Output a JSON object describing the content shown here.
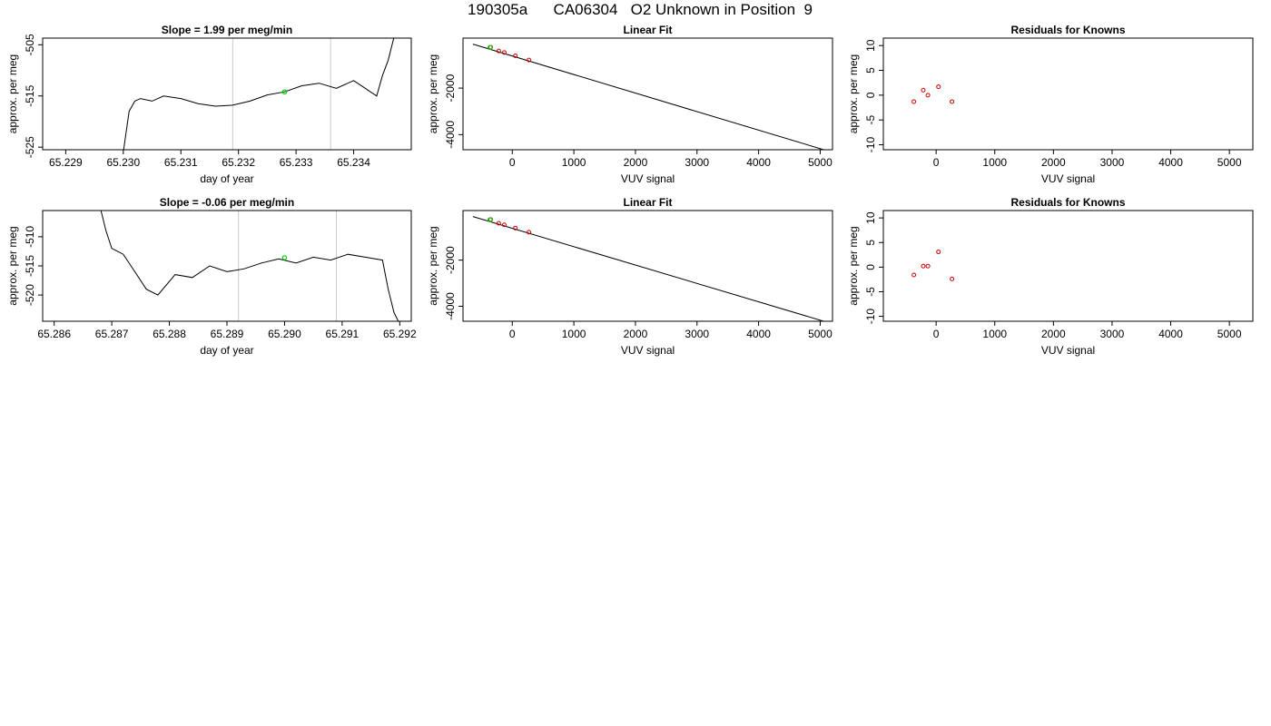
{
  "figure": {
    "title": "190305a      CA06304   O2 Unknown in Position  9"
  },
  "chart_data": [
    {
      "panel": "row1-time",
      "type": "line",
      "title": "Slope =  1.99  per meg/min",
      "xlabel": "day of year",
      "ylabel": "approx. per meg",
      "xlim": [
        65.2286,
        65.235
      ],
      "ylim": [
        -525.5,
        -503.7
      ],
      "xticks": [
        65.229,
        65.23,
        65.231,
        65.232,
        65.233,
        65.234
      ],
      "xtick_labels": [
        "65.229",
        "65.230",
        "65.231",
        "65.232",
        "65.233",
        "65.234"
      ],
      "yticks": [
        -525,
        -515,
        -505
      ],
      "ytick_labels": [
        "-525",
        "-515",
        "-505"
      ],
      "vlines": [
        65.2319,
        65.2336
      ],
      "marker": {
        "x": 65.2328,
        "y": -514.2,
        "color": "#00cc00"
      },
      "series": [
        {
          "x": [
            65.23,
            65.2301,
            65.2302,
            65.2303,
            65.2305,
            65.2307,
            65.231,
            65.2313,
            65.2316,
            65.2319,
            65.2322,
            65.2325,
            65.2328,
            65.2331,
            65.2334,
            65.2337,
            65.234,
            65.2342,
            65.2344,
            65.2345,
            65.2346,
            65.2347
          ],
          "y": [
            -526,
            -518,
            -516,
            -515.5,
            -516,
            -515,
            -515.5,
            -516.5,
            -517,
            -516.8,
            -516,
            -514.8,
            -514.2,
            -513,
            -512.5,
            -513.5,
            -512,
            -513.5,
            -515,
            -511,
            -508,
            -503.5
          ]
        }
      ]
    },
    {
      "panel": "row1-fit",
      "type": "scatter",
      "title": "Linear Fit",
      "xlabel": "VUV signal",
      "ylabel": "approx. per meg",
      "xlim": [
        -800,
        5200
      ],
      "ylim": [
        -4650,
        150
      ],
      "xticks": [
        0,
        1000,
        2000,
        3000,
        4000,
        5000
      ],
      "xtick_labels": [
        "0",
        "1000",
        "2000",
        "3000",
        "4000",
        "5000"
      ],
      "yticks": [
        -4000,
        -2000
      ],
      "ytick_labels": [
        "-4000",
        "-2000"
      ],
      "fit_line": {
        "x": [
          -640,
          5120
        ],
        "y": [
          -110,
          -4700
        ]
      },
      "series": [
        {
          "name": "",
          "color": "#cc0000",
          "x": [
            -350,
            -220,
            -130,
            50,
            270
          ],
          "y": [
            -240,
            -400,
            -470,
            -610,
            -790
          ]
        }
      ],
      "marker": {
        "x": -360,
        "y": -250,
        "color": "#00cc00"
      }
    },
    {
      "panel": "row1-residuals",
      "type": "scatter",
      "title": "Residuals for Knowns",
      "xlabel": "VUV signal",
      "ylabel": "approx. per meg",
      "xlim": [
        -900,
        5400
      ],
      "ylim": [
        -11,
        11.5
      ],
      "xticks": [
        0,
        1000,
        2000,
        3000,
        4000,
        5000
      ],
      "xtick_labels": [
        "0",
        "1000",
        "2000",
        "3000",
        "4000",
        "5000"
      ],
      "yticks": [
        -10,
        -5,
        0,
        5,
        10
      ],
      "ytick_labels": [
        "-10",
        "-5",
        "0",
        "5",
        "10"
      ],
      "series": [
        {
          "name": "",
          "color": "#cc0000",
          "x": [
            -380,
            -220,
            -140,
            40,
            270
          ],
          "y": [
            -1.3,
            1.0,
            0.0,
            1.7,
            -1.3
          ]
        }
      ]
    },
    {
      "panel": "row2-time",
      "type": "line",
      "title": "Slope =  -0.06  per meg/min",
      "xlabel": "day of year",
      "ylabel": "approx. per meg",
      "xlim": [
        65.2858,
        65.2922
      ],
      "ylim": [
        -524.5,
        -505.5
      ],
      "xticks": [
        65.286,
        65.287,
        65.288,
        65.289,
        65.29,
        65.291,
        65.292
      ],
      "xtick_labels": [
        "65.286",
        "65.287",
        "65.288",
        "65.289",
        "65.290",
        "65.291",
        "65.292"
      ],
      "yticks": [
        -520,
        -515,
        -510
      ],
      "ytick_labels": [
        "-520",
        "-515",
        "-510"
      ],
      "vlines": [
        65.2892,
        65.2909
      ],
      "marker": {
        "x": 65.29,
        "y": -513.6,
        "color": "#00cc00"
      },
      "series": [
        {
          "x": [
            65.2868,
            65.2869,
            65.287,
            65.2872,
            65.2874,
            65.2876,
            65.2878,
            65.2881,
            65.2884,
            65.2887,
            65.289,
            65.2893,
            65.2896,
            65.2899,
            65.2902,
            65.2905,
            65.2908,
            65.2911,
            65.2914,
            65.2917,
            65.2918,
            65.2919,
            65.292
          ],
          "y": [
            -505,
            -509,
            -512,
            -513,
            -516,
            -519,
            -520,
            -516.5,
            -517,
            -515,
            -516,
            -515.5,
            -514.5,
            -513.8,
            -514.5,
            -513.5,
            -514,
            -513,
            -513.5,
            -514,
            -519,
            -523,
            -525
          ]
        }
      ]
    },
    {
      "panel": "row2-fit",
      "type": "scatter",
      "title": "Linear Fit",
      "xlabel": "VUV signal",
      "ylabel": "approx. per meg",
      "xlim": [
        -800,
        5200
      ],
      "ylim": [
        -4650,
        150
      ],
      "xticks": [
        0,
        1000,
        2000,
        3000,
        4000,
        5000
      ],
      "xtick_labels": [
        "0",
        "1000",
        "2000",
        "3000",
        "4000",
        "5000"
      ],
      "yticks": [
        -4000,
        -2000
      ],
      "ytick_labels": [
        "-4000",
        "-2000"
      ],
      "fit_line": {
        "x": [
          -640,
          5120
        ],
        "y": [
          -110,
          -4700
        ]
      },
      "series": [
        {
          "name": "",
          "color": "#cc0000",
          "x": [
            -350,
            -220,
            -130,
            50,
            270
          ],
          "y": [
            -240,
            -400,
            -470,
            -610,
            -790
          ]
        }
      ],
      "marker": {
        "x": -360,
        "y": -250,
        "color": "#00cc00"
      }
    },
    {
      "panel": "row2-residuals",
      "type": "scatter",
      "title": "Residuals for Knowns",
      "xlabel": "VUV signal",
      "ylabel": "approx. per meg",
      "xlim": [
        -900,
        5400
      ],
      "ylim": [
        -11,
        11.5
      ],
      "xticks": [
        0,
        1000,
        2000,
        3000,
        4000,
        5000
      ],
      "xtick_labels": [
        "0",
        "1000",
        "2000",
        "3000",
        "4000",
        "5000"
      ],
      "yticks": [
        -10,
        -5,
        0,
        5,
        10
      ],
      "ytick_labels": [
        "-10",
        "-5",
        "0",
        "5",
        "10"
      ],
      "series": [
        {
          "name": "",
          "color": "#cc0000",
          "x": [
            -380,
            -220,
            -140,
            40,
            270
          ],
          "y": [
            -1.6,
            0.2,
            0.2,
            3.1,
            -2.4
          ]
        }
      ]
    }
  ]
}
